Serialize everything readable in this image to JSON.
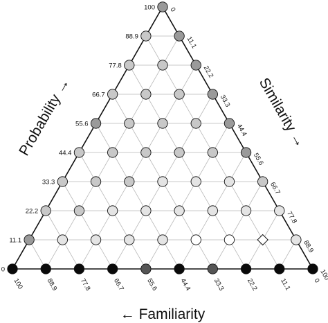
{
  "chart_data": {
    "type": "scatter",
    "subtype": "ternary",
    "axis_titles": {
      "left": "Probability →",
      "right": "Similarity →",
      "bottom": "← Familiarity"
    },
    "tick_labels": [
      "0",
      "11.1",
      "22.2",
      "33.3",
      "44.4",
      "55.6",
      "66.7",
      "77.8",
      "88.9",
      "100"
    ],
    "grid": true,
    "colors": {
      "black": "#0a0a0a",
      "dark": "#555555",
      "mid": "#9a9a9a",
      "light": "#c8c8c8",
      "pale": "#e4e4e4",
      "white": "#ffffff"
    },
    "rows": [
      {
        "probability": 0,
        "fill": [
          "black",
          "black",
          "black",
          "black",
          "dark",
          "black",
          "dark",
          "black",
          "black",
          "black"
        ]
      },
      {
        "probability": 11.1,
        "fill": [
          "mid",
          "pale",
          "pale",
          "pale",
          "pale",
          "white",
          "white",
          "diamond",
          "pale"
        ]
      },
      {
        "probability": 22.2,
        "fill": [
          "light",
          "light",
          "pale",
          "pale",
          "pale",
          "pale",
          "pale",
          "pale"
        ]
      },
      {
        "probability": 33.3,
        "fill": [
          "light",
          "light",
          "light",
          "pale",
          "pale",
          "pale",
          "light"
        ]
      },
      {
        "probability": 44.4,
        "fill": [
          "light",
          "light",
          "light",
          "light",
          "light",
          "mid"
        ]
      },
      {
        "probability": 55.6,
        "fill": [
          "mid",
          "light",
          "light",
          "light",
          "mid"
        ]
      },
      {
        "probability": 66.7,
        "fill": [
          "light",
          "light",
          "light",
          "mid"
        ]
      },
      {
        "probability": 77.8,
        "fill": [
          "light",
          "light",
          "mid"
        ]
      },
      {
        "probability": 88.9,
        "fill": [
          "light",
          "mid"
        ]
      },
      {
        "probability": 100,
        "fill": [
          "mid"
        ]
      }
    ]
  }
}
